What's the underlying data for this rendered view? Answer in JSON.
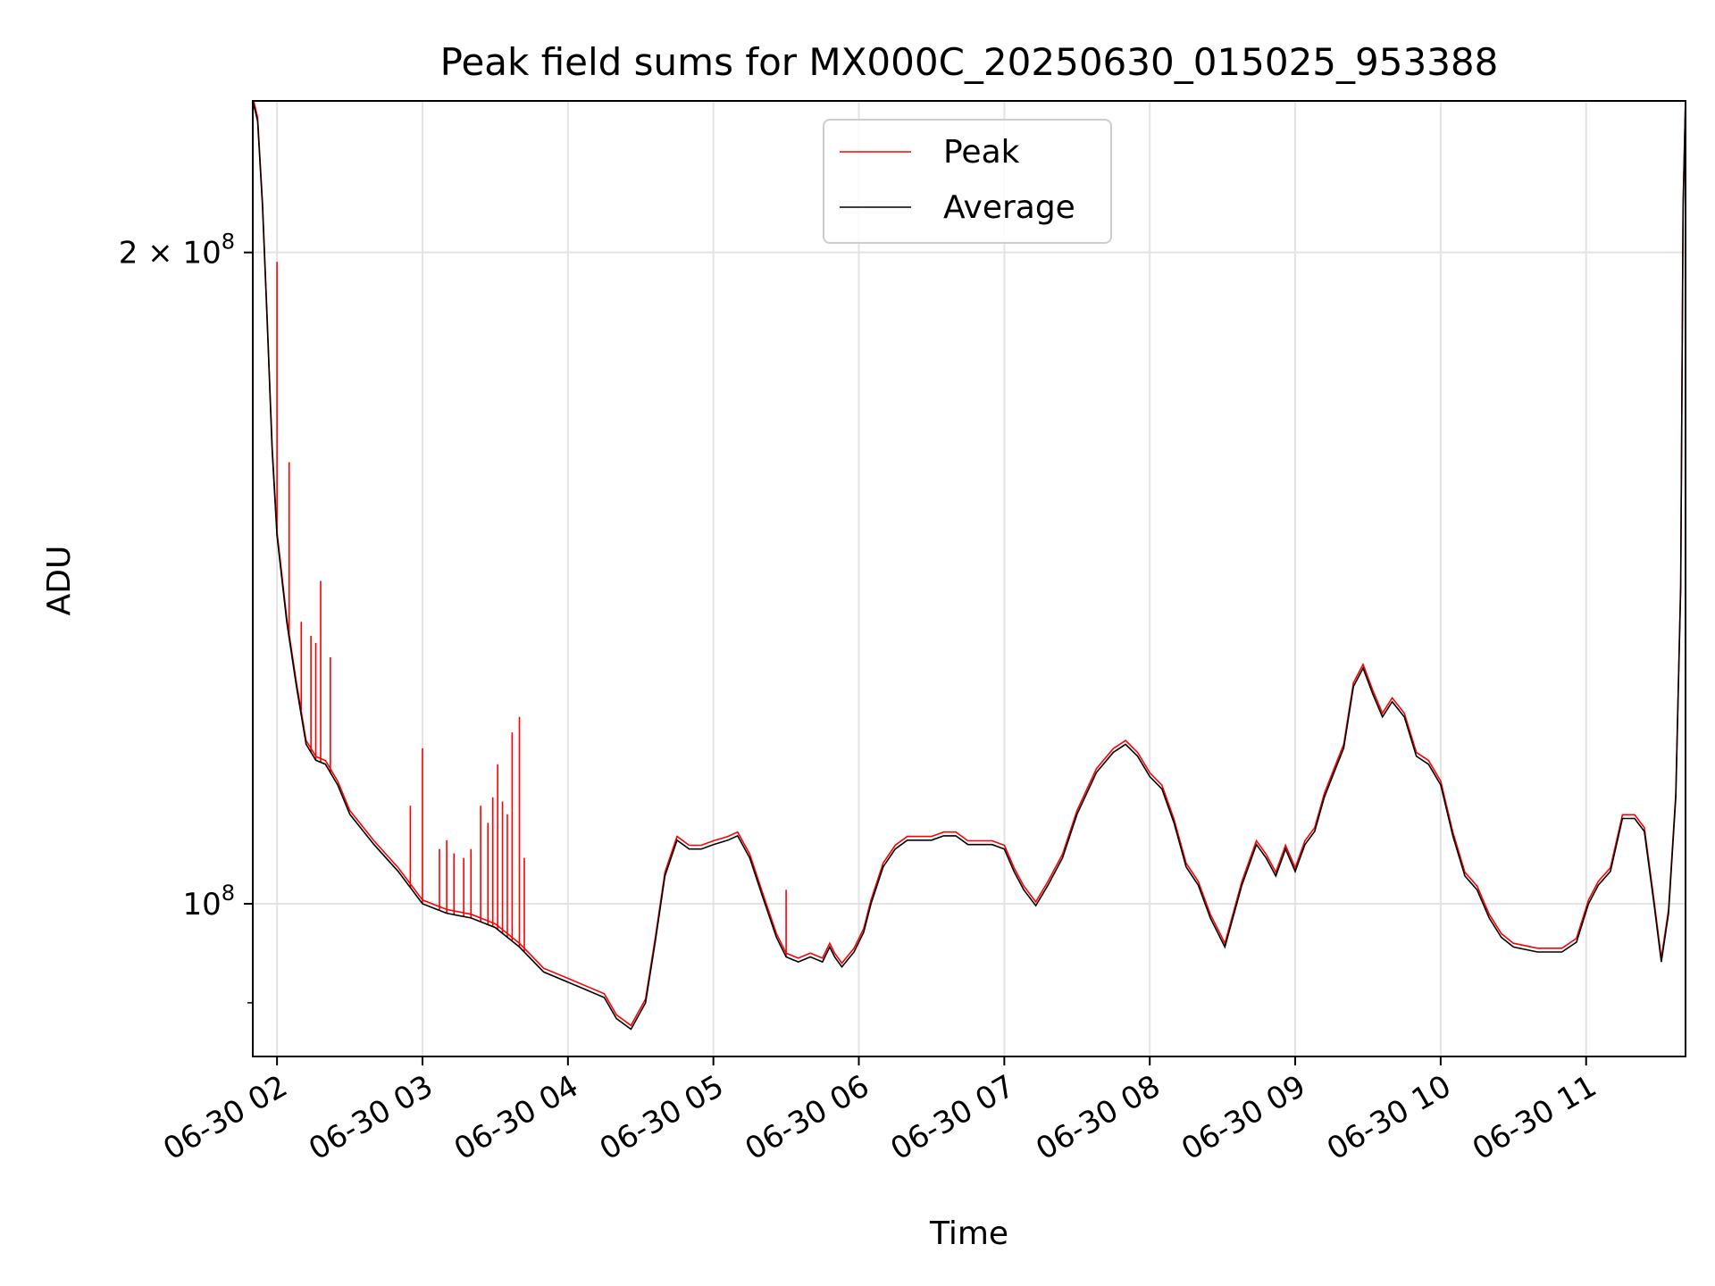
{
  "chart_data": {
    "type": "line",
    "title": "Peak field sums for MX000C_20250630_015025_953388",
    "xlabel": "Time",
    "ylabel": "ADU",
    "y_scale": "log",
    "ylim": [
      85000000.0,
      235000000.0
    ],
    "xlim": [
      "2025-06-30 01:50",
      "2025-06-30 11:41"
    ],
    "grid": true,
    "legend_position": "top-center",
    "x_ticks": [
      {
        "label": "06-30 02",
        "time": "2025-06-30 02:00"
      },
      {
        "label": "06-30 03",
        "time": "2025-06-30 03:00"
      },
      {
        "label": "06-30 04",
        "time": "2025-06-30 04:00"
      },
      {
        "label": "06-30 05",
        "time": "2025-06-30 05:00"
      },
      {
        "label": "06-30 06",
        "time": "2025-06-30 06:00"
      },
      {
        "label": "06-30 07",
        "time": "2025-06-30 07:00"
      },
      {
        "label": "06-30 08",
        "time": "2025-06-30 08:00"
      },
      {
        "label": "06-30 09",
        "time": "2025-06-30 09:00"
      },
      {
        "label": "06-30 10",
        "time": "2025-06-30 10:00"
      },
      {
        "label": "06-30 11",
        "time": "2025-06-30 11:00"
      }
    ],
    "y_ticks": [
      {
        "value": 100000000,
        "mantissa": "",
        "base": "10",
        "exponent": "8"
      },
      {
        "value": 200000000,
        "mantissa": "2 × ",
        "base": "10",
        "exponent": "8"
      }
    ],
    "series": [
      {
        "name": "Average",
        "color": "#000000",
        "points": [
          [
            "2025-06-30 01:50",
            235000000.0
          ],
          [
            "2025-06-30 01:52",
            230000000.0
          ],
          [
            "2025-06-30 01:54",
            210000000.0
          ],
          [
            "2025-06-30 01:56",
            185000000.0
          ],
          [
            "2025-06-30 01:58",
            162000000.0
          ],
          [
            "2025-06-30 02:00",
            148000000.0
          ],
          [
            "2025-06-30 02:04",
            135000000.0
          ],
          [
            "2025-06-30 02:08",
            126000000.0
          ],
          [
            "2025-06-30 02:12",
            118500000.0
          ],
          [
            "2025-06-30 02:16",
            116500000.0
          ],
          [
            "2025-06-30 02:20",
            116000000.0
          ],
          [
            "2025-06-30 02:25",
            113500000.0
          ],
          [
            "2025-06-30 02:30",
            110000000.0
          ],
          [
            "2025-06-30 02:40",
            106500000.0
          ],
          [
            "2025-06-30 02:50",
            103500000.0
          ],
          [
            "2025-06-30 03:00",
            100000000.0
          ],
          [
            "2025-06-30 03:10",
            99000000.0
          ],
          [
            "2025-06-30 03:20",
            98500000.0
          ],
          [
            "2025-06-30 03:30",
            97500000.0
          ],
          [
            "2025-06-30 03:40",
            95500000.0
          ],
          [
            "2025-06-30 03:50",
            93000000.0
          ],
          [
            "2025-06-30 04:00",
            92000000.0
          ],
          [
            "2025-06-30 04:08",
            91200000.0
          ],
          [
            "2025-06-30 04:15",
            90500000.0
          ],
          [
            "2025-06-30 04:20",
            88500000.0
          ],
          [
            "2025-06-30 04:26",
            87500000.0
          ],
          [
            "2025-06-30 04:32",
            90000000.0
          ],
          [
            "2025-06-30 04:36",
            96000000.0
          ],
          [
            "2025-06-30 04:40",
            103000000.0
          ],
          [
            "2025-06-30 04:45",
            107000000.0
          ],
          [
            "2025-06-30 04:50",
            106000000.0
          ],
          [
            "2025-06-30 04:55",
            106000000.0
          ],
          [
            "2025-06-30 05:00",
            106500000.0
          ],
          [
            "2025-06-30 05:06",
            107000000.0
          ],
          [
            "2025-06-30 05:10",
            107500000.0
          ],
          [
            "2025-06-30 05:15",
            105000000.0
          ],
          [
            "2025-06-30 05:20",
            101000000.0
          ],
          [
            "2025-06-30 05:26",
            96500000.0
          ],
          [
            "2025-06-30 05:30",
            94500000.0
          ],
          [
            "2025-06-30 05:35",
            94000000.0
          ],
          [
            "2025-06-30 05:40",
            94500000.0
          ],
          [
            "2025-06-30 05:45",
            94000000.0
          ],
          [
            "2025-06-30 05:48",
            95500000.0
          ],
          [
            "2025-06-30 05:50",
            94500000.0
          ],
          [
            "2025-06-30 05:53",
            93500000.0
          ],
          [
            "2025-06-30 05:58",
            95000000.0
          ],
          [
            "2025-06-30 06:02",
            97000000.0
          ],
          [
            "2025-06-30 06:05",
            100000000.0
          ],
          [
            "2025-06-30 06:10",
            104000000.0
          ],
          [
            "2025-06-30 06:15",
            106000000.0
          ],
          [
            "2025-06-30 06:20",
            107000000.0
          ],
          [
            "2025-06-30 06:25",
            107000000.0
          ],
          [
            "2025-06-30 06:30",
            107000000.0
          ],
          [
            "2025-06-30 06:35",
            107500000.0
          ],
          [
            "2025-06-30 06:40",
            107500000.0
          ],
          [
            "2025-06-30 06:45",
            106500000.0
          ],
          [
            "2025-06-30 06:50",
            106500000.0
          ],
          [
            "2025-06-30 06:55",
            106500000.0
          ],
          [
            "2025-06-30 07:00",
            106000000.0
          ],
          [
            "2025-06-30 07:04",
            103500000.0
          ],
          [
            "2025-06-30 07:08",
            101500000.0
          ],
          [
            "2025-06-30 07:13",
            99800000.0
          ],
          [
            "2025-06-30 07:18",
            102000000.0
          ],
          [
            "2025-06-30 07:24",
            105000000.0
          ],
          [
            "2025-06-30 07:30",
            110000000.0
          ],
          [
            "2025-06-30 07:38",
            115000000.0
          ],
          [
            "2025-06-30 07:45",
            117500000.0
          ],
          [
            "2025-06-30 07:50",
            118500000.0
          ],
          [
            "2025-06-30 07:55",
            117000000.0
          ],
          [
            "2025-06-30 08:00",
            114500000.0
          ],
          [
            "2025-06-30 08:05",
            113000000.0
          ],
          [
            "2025-06-30 08:10",
            109000000.0
          ],
          [
            "2025-06-30 08:15",
            104000000.0
          ],
          [
            "2025-06-30 08:20",
            102000000.0
          ],
          [
            "2025-06-30 08:25",
            98500000.0
          ],
          [
            "2025-06-30 08:31",
            95500000.0
          ],
          [
            "2025-06-30 08:38",
            102000000.0
          ],
          [
            "2025-06-30 08:44",
            106500000.0
          ],
          [
            "2025-06-30 08:48",
            105000000.0
          ],
          [
            "2025-06-30 08:52",
            103000000.0
          ],
          [
            "2025-06-30 08:56",
            106000000.0
          ],
          [
            "2025-06-30 09:00",
            103500000.0
          ],
          [
            "2025-06-30 09:04",
            106500000.0
          ],
          [
            "2025-06-30 09:08",
            108000000.0
          ],
          [
            "2025-06-30 09:12",
            112000000.0
          ],
          [
            "2025-06-30 09:16",
            115000000.0
          ],
          [
            "2025-06-30 09:20",
            118000000.0
          ],
          [
            "2025-06-30 09:24",
            126000000.0
          ],
          [
            "2025-06-30 09:28",
            128500000.0
          ],
          [
            "2025-06-30 09:32",
            125000000.0
          ],
          [
            "2025-06-30 09:36",
            122000000.0
          ],
          [
            "2025-06-30 09:40",
            124000000.0
          ],
          [
            "2025-06-30 09:45",
            122000000.0
          ],
          [
            "2025-06-30 09:50",
            117000000.0
          ],
          [
            "2025-06-30 09:55",
            116000000.0
          ],
          [
            "2025-06-30 10:00",
            113500000.0
          ],
          [
            "2025-06-30 10:05",
            107500000.0
          ],
          [
            "2025-06-30 10:10",
            103000000.0
          ],
          [
            "2025-06-30 10:15",
            101500000.0
          ],
          [
            "2025-06-30 10:20",
            98500000.0
          ],
          [
            "2025-06-30 10:25",
            96500000.0
          ],
          [
            "2025-06-30 10:30",
            95500000.0
          ],
          [
            "2025-06-30 10:40",
            95000000.0
          ],
          [
            "2025-06-30 10:50",
            95000000.0
          ],
          [
            "2025-06-30 10:56",
            96000000.0
          ],
          [
            "2025-06-30 11:01",
            100000000.0
          ],
          [
            "2025-06-30 11:05",
            102000000.0
          ],
          [
            "2025-06-30 11:10",
            103500000.0
          ],
          [
            "2025-06-30 11:15",
            109500000.0
          ],
          [
            "2025-06-30 11:20",
            109500000.0
          ],
          [
            "2025-06-30 11:24",
            108000000.0
          ],
          [
            "2025-06-30 11:28",
            100000000.0
          ],
          [
            "2025-06-30 11:31",
            94000000.0
          ],
          [
            "2025-06-30 11:34",
            99000000.0
          ],
          [
            "2025-06-30 11:37",
            112000000.0
          ],
          [
            "2025-06-30 11:39",
            140000000.0
          ],
          [
            "2025-06-30 11:40",
            210000000.0
          ],
          [
            "2025-06-30 11:41",
            235000000.0
          ]
        ]
      },
      {
        "name": "Peak",
        "color": "#ff0000",
        "offset_factor": 1.004,
        "spikes": [
          [
            "2025-06-30 01:54",
            210000000.0
          ],
          [
            "2025-06-30 02:00",
            198000000.0
          ],
          [
            "2025-06-30 02:05",
            160000000.0
          ],
          [
            "2025-06-30 02:10",
            135000000.0
          ],
          [
            "2025-06-30 02:14",
            133000000.0
          ],
          [
            "2025-06-30 02:16",
            132000000.0
          ],
          [
            "2025-06-30 02:18",
            141000000.0
          ],
          [
            "2025-06-30 02:22",
            130000000.0
          ],
          [
            "2025-06-30 03:00",
            118000000.0
          ],
          [
            "2025-06-30 02:55",
            111000000.0
          ],
          [
            "2025-06-30 03:07",
            106000000.0
          ],
          [
            "2025-06-30 03:10",
            107000000.0
          ],
          [
            "2025-06-30 03:13",
            105500000.0
          ],
          [
            "2025-06-30 03:17",
            105000000.0
          ],
          [
            "2025-06-30 03:20",
            106000000.0
          ],
          [
            "2025-06-30 03:24",
            111000000.0
          ],
          [
            "2025-06-30 03:27",
            109000000.0
          ],
          [
            "2025-06-30 03:29",
            112000000.0
          ],
          [
            "2025-06-30 03:31",
            116000000.0
          ],
          [
            "2025-06-30 03:33",
            111500000.0
          ],
          [
            "2025-06-30 03:35",
            110000000.0
          ],
          [
            "2025-06-30 03:37",
            120000000.0
          ],
          [
            "2025-06-30 03:40",
            122000000.0
          ],
          [
            "2025-06-30 03:42",
            105000000.0
          ],
          [
            "2025-06-30 05:30",
            101500000.0
          ]
        ]
      }
    ]
  }
}
